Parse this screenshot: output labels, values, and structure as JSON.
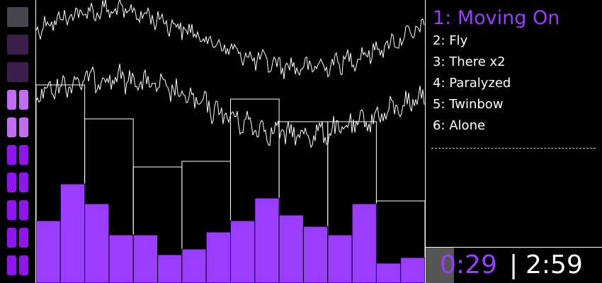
{
  "tracks": [
    {
      "label": "1: Moving On",
      "active": true
    },
    {
      "label": "2: Fly",
      "active": false
    },
    {
      "label": "3: There x2",
      "active": false
    },
    {
      "label": "4: Paralyzed",
      "active": false
    },
    {
      "label": "5: Twinbow",
      "active": false
    },
    {
      "label": "6: Alone",
      "active": false
    }
  ],
  "time": {
    "elapsed": "0:29",
    "separator": "|",
    "total": "2:59"
  },
  "meter": {
    "leds": [
      {
        "style": "solid",
        "color": "#47454f"
      },
      {
        "style": "solid",
        "color": "#3c1e4c"
      },
      {
        "style": "solid",
        "color": "#3c1e4c"
      },
      {
        "style": "split",
        "color": "#c16cf3"
      },
      {
        "style": "split",
        "color": "#c16cf3"
      },
      {
        "style": "split",
        "color": "#9014f0"
      },
      {
        "style": "split",
        "color": "#9014f0"
      },
      {
        "style": "split",
        "color": "#9014f0"
      },
      {
        "style": "split",
        "color": "#9014f0"
      },
      {
        "style": "split",
        "color": "#9014f0"
      }
    ]
  },
  "colors": {
    "accent": "#9b3dff",
    "bar_fill": "#9b3dff",
    "outline": "#ffffff",
    "elapsed_bg": "#555555"
  },
  "visualizer": {
    "outline_levels": [
      0.7,
      0.58,
      0.41,
      0.43,
      0.65,
      0.57,
      0.57,
      0.29
    ],
    "bar_levels": [
      0.22,
      0.35,
      0.28,
      0.17,
      0.17,
      0.1,
      0.12,
      0.18,
      0.22,
      0.3,
      0.24,
      0.2,
      0.17,
      0.28,
      0.07,
      0.09
    ]
  }
}
